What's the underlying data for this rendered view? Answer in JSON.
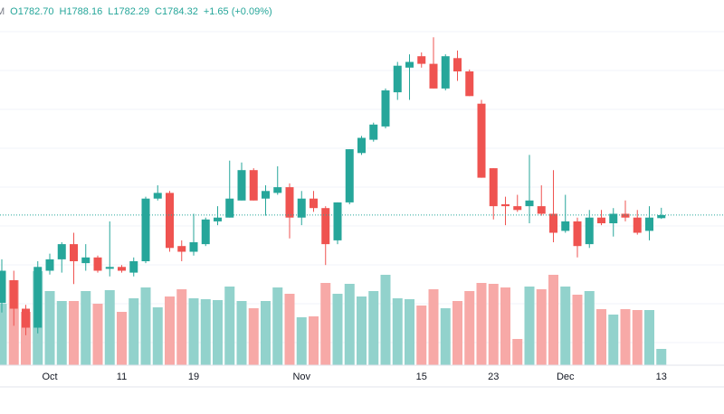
{
  "chart_data": {
    "type": "candlestick",
    "legend": [
      "M",
      "O1782.70",
      "H1788.16",
      "L1782.29",
      "C1784.32",
      "+1.65 (+0.09%)"
    ],
    "categories": [
      null,
      null,
      null,
      null,
      "Oct",
      null,
      null,
      null,
      null,
      null,
      "11",
      null,
      null,
      null,
      null,
      null,
      "19",
      null,
      null,
      null,
      null,
      null,
      null,
      null,
      null,
      "Nov",
      null,
      null,
      null,
      null,
      null,
      null,
      null,
      null,
      null,
      "15",
      null,
      null,
      null,
      null,
      null,
      "23",
      null,
      null,
      null,
      null,
      null,
      "Dec",
      null,
      null,
      null,
      null,
      null,
      null,
      null,
      "13"
    ],
    "open": [
      1738,
      1750,
      1735,
      1725,
      1755,
      1761,
      1769,
      1759,
      1762,
      1756,
      1757,
      1754,
      1760,
      1793,
      1796,
      1768,
      1765,
      1769,
      1781,
      1783,
      1792,
      1808,
      1793,
      1796,
      1799,
      1783,
      1793,
      1788,
      1771,
      1791,
      1817,
      1824,
      1831,
      1849,
      1862,
      1868,
      1864,
      1851,
      1867,
      1860,
      1843,
      1809,
      1790,
      1789,
      1789,
      1789,
      1785,
      1776,
      1781,
      1769,
      1783,
      1780,
      1785,
      1783,
      1776,
      1782.7
    ],
    "high": [
      1761,
      1755,
      1737,
      1760,
      1764,
      1770,
      1775,
      1769,
      1763,
      1781,
      1758,
      1762,
      1794,
      1800,
      1797,
      1771,
      1785,
      1783,
      1789,
      1813,
      1812,
      1809,
      1800,
      1810,
      1801,
      1797,
      1797,
      1789,
      1791,
      1819,
      1826,
      1833,
      1851,
      1865,
      1869,
      1870,
      1878,
      1869,
      1871,
      1861,
      1845,
      1809,
      1794,
      1795,
      1816,
      1800,
      1808,
      1795,
      1783,
      1787,
      1787,
      1788,
      1792,
      1787,
      1789,
      1788.16
    ],
    "low": [
      1733,
      1726,
      1721,
      1722,
      1753,
      1754,
      1748,
      1755,
      1754,
      1752,
      1754,
      1752,
      1759,
      1792,
      1765,
      1760,
      1763,
      1768,
      1779,
      1783,
      1792,
      1792,
      1784,
      1795,
      1772,
      1779,
      1786,
      1758,
      1769,
      1790,
      1816,
      1823,
      1830,
      1845,
      1845,
      1862,
      1851,
      1850,
      1855,
      1847,
      1804,
      1782,
      1779,
      1786,
      1780,
      1784,
      1770,
      1775,
      1762,
      1767,
      1779,
      1773,
      1781,
      1774,
      1771,
      1782.29
    ],
    "close": [
      1755,
      1735,
      1725,
      1757,
      1761,
      1769,
      1760,
      1762,
      1755,
      1757,
      1755,
      1760,
      1793,
      1796,
      1767,
      1765,
      1770,
      1782,
      1783,
      1793,
      1808,
      1792,
      1797,
      1799,
      1783,
      1793,
      1788,
      1769,
      1791,
      1819,
      1825,
      1832,
      1850,
      1863,
      1865,
      1864,
      1851,
      1868,
      1860,
      1847,
      1804,
      1789,
      1789,
      1787,
      1792,
      1785,
      1775,
      1781,
      1768,
      1783,
      1780,
      1785,
      1783,
      1775,
      1783,
      1784.32
    ],
    "volume": [
      68,
      94,
      59,
      104,
      82,
      71,
      71,
      82,
      68,
      83,
      59,
      74,
      86,
      64,
      76,
      84,
      74,
      73,
      72,
      87,
      71,
      63,
      71,
      86,
      79,
      53,
      54,
      91,
      79,
      90,
      76,
      82,
      100,
      74,
      73,
      66,
      84,
      63,
      71,
      82,
      91,
      90,
      86,
      29,
      87,
      84,
      100,
      87,
      78,
      82,
      62,
      56,
      62,
      61,
      61,
      18
    ],
    "ylim": [
      1700,
      1900
    ],
    "volume_ylim": [
      0,
      100
    ],
    "up_color": "#26a69a",
    "down_color": "#ef5350",
    "volume_up_color": "#92d2cc",
    "volume_down_color": "#f7a9a7",
    "grid": true
  }
}
